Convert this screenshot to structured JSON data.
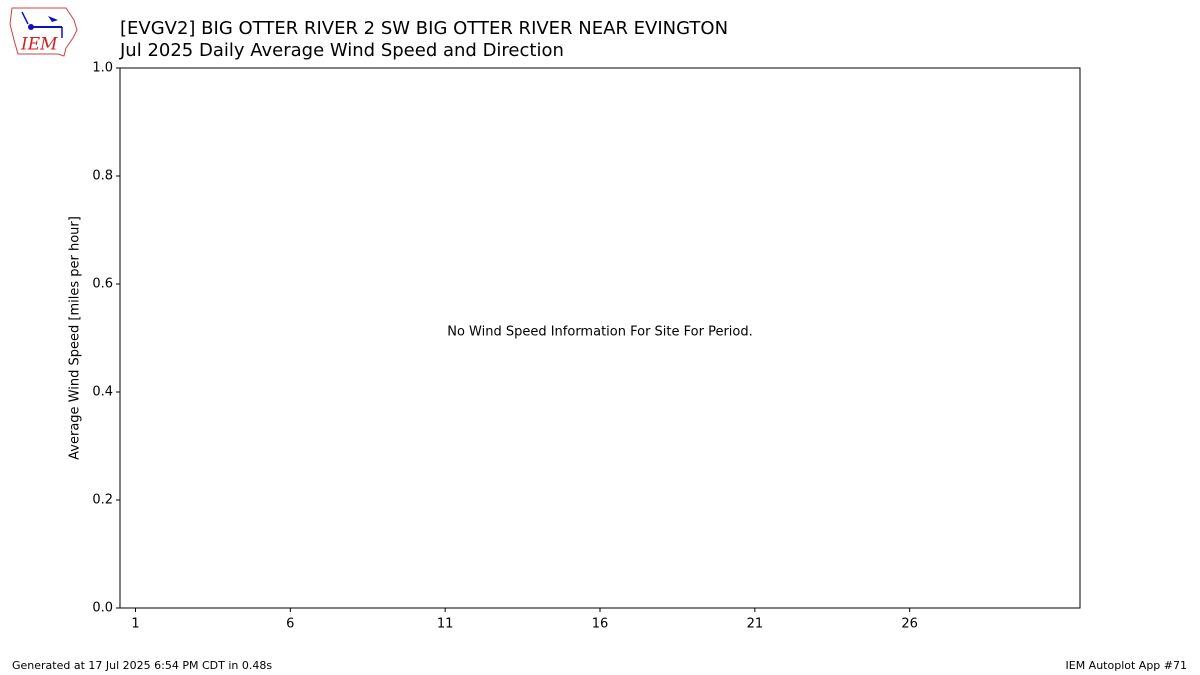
{
  "chart_data": {
    "type": "bar",
    "title": "[EVGV2] BIG OTTER RIVER 2 SW BIG OTTER RIVER NEAR EVINGTON",
    "subtitle": "Jul 2025 Daily Average Wind Speed and Direction",
    "ylabel": "Average Wind Speed [miles per hour]",
    "annotation": "No Wind Speed Information For Site For Period.",
    "xlim": [
      0.5,
      31.5
    ],
    "xticks": [
      1,
      6,
      11,
      16,
      21,
      26
    ],
    "ylim": [
      0,
      1
    ],
    "yticks": [
      {
        "value": 0,
        "label": "0.0"
      },
      {
        "value": 0.2,
        "label": "0.2"
      },
      {
        "value": 0.4,
        "label": "0.4"
      },
      {
        "value": 0.6,
        "label": "0.6"
      },
      {
        "value": 0.8,
        "label": "0.8"
      },
      {
        "value": 1,
        "label": "1.0"
      }
    ],
    "grid": false
  },
  "logo_text": "IEM",
  "footer_left": "Generated at 17 Jul 2025 6:54 PM CDT in 0.48s",
  "footer_right": "IEM Autoplot App #71"
}
